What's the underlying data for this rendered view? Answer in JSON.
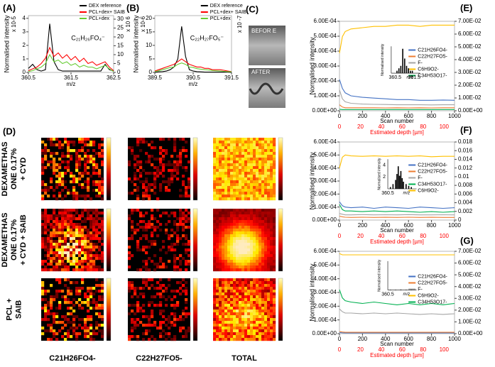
{
  "chart_data": [
    {
      "type": "line",
      "panel": "(A)",
      "ylabel": "Normalised intensity",
      "y_multiplier": "x 10-5",
      "y2_multiplier": "x 10 6",
      "xlabel": "m/z",
      "annotation": "C₂₁H₂₆FO₄⁻",
      "x": [
        360.5,
        360.6,
        360.7,
        360.8,
        360.9,
        361.0,
        361.1,
        361.2,
        361.3,
        361.4,
        361.5,
        361.6,
        361.7,
        361.8,
        361.9,
        362.0,
        362.1,
        362.2,
        362.3,
        362.4,
        362.5
      ],
      "xlim": [
        360.5,
        362.5
      ],
      "xticks": [
        360.5,
        361.5,
        362.5
      ],
      "ylim": [
        0,
        4.2
      ],
      "yticks": [
        0,
        1,
        2,
        3,
        4
      ],
      "y2lim": [
        0,
        32
      ],
      "y2ticks": [
        0,
        5,
        10,
        15,
        20,
        25,
        30
      ],
      "legend": "upper right",
      "series": [
        {
          "name": "DEX reference",
          "color": "#000000",
          "values": [
            0.3,
            0.6,
            0.2,
            0.1,
            0.2,
            3.6,
            0.8,
            0.2,
            0.1,
            0.1,
            0.1,
            0.1,
            0.1,
            0.1,
            0.1,
            0.1,
            0.1,
            0.1,
            0.6,
            0.2,
            0.1
          ]
        },
        {
          "name": "PCL+dex+ SAIB",
          "color": "#ff0000",
          "axis": "y2",
          "values": [
            1,
            2,
            3,
            5,
            8,
            14,
            9,
            11,
            8,
            10,
            7,
            9,
            6,
            8,
            5,
            6,
            4,
            5,
            6,
            3,
            1
          ]
        },
        {
          "name": "PCL+dex",
          "color": "#66cc33",
          "axis": "y2",
          "values": [
            0.5,
            1,
            2,
            3,
            5,
            10,
            6,
            7,
            5,
            6,
            4,
            5,
            3,
            4,
            3,
            3,
            2,
            3,
            4,
            2,
            0.5
          ]
        }
      ]
    },
    {
      "type": "line",
      "panel": "(B)",
      "ylabel": "Normalised intensity",
      "y_multiplier": "x 10-6",
      "y2_multiplier": "x 10 -7",
      "xlabel": "m/z",
      "annotation": "C₂₂H₂₇FO₅⁻",
      "x": [
        389.5,
        389.6,
        389.7,
        389.8,
        389.9,
        390.0,
        390.1,
        390.2,
        390.3,
        390.4,
        390.5,
        390.6,
        390.7,
        390.8,
        390.9,
        391.0,
        391.1,
        391.2,
        391.3,
        391.4,
        391.5
      ],
      "xlim": [
        389.5,
        391.5
      ],
      "xticks": [
        389.5,
        390.5,
        391.5
      ],
      "ylim": [
        0,
        21
      ],
      "yticks": [
        0,
        5,
        10,
        15,
        20
      ],
      "legend": "upper right",
      "series": [
        {
          "name": "DEX reference",
          "color": "#000000",
          "values": [
            0,
            0.2,
            0.3,
            0.5,
            1,
            2,
            5,
            17,
            6,
            1,
            0.5,
            0.3,
            0.2,
            0.1,
            0.1,
            0.1,
            0.1,
            0.1,
            0.1,
            0.1,
            0
          ]
        },
        {
          "name": "PCL+dex+ SAIB",
          "color": "#ff0000",
          "values": [
            0.5,
            1,
            1.5,
            2,
            2.5,
            3,
            4,
            5,
            4,
            3,
            2.5,
            2,
            2,
            1.5,
            1.5,
            1,
            1,
            1,
            0.8,
            0.5,
            0.3
          ]
        },
        {
          "name": "PCL+dex",
          "color": "#66cc33",
          "values": [
            0.3,
            0.6,
            1,
            1.4,
            1.8,
            2,
            3,
            3.5,
            3,
            2,
            1.8,
            1.4,
            1.2,
            1,
            0.9,
            0.7,
            0.6,
            0.5,
            0.4,
            0.3,
            0.2
          ]
        }
      ]
    },
    {
      "type": "line",
      "panel": "(E)",
      "ylabel": "Normalised intensity",
      "xlabel": "Scan number",
      "x2label": "Estimated depth [µm]",
      "x": [
        0,
        25,
        50,
        100,
        200,
        300,
        400,
        500,
        600,
        700,
        800,
        900,
        1000
      ],
      "xlim": [
        0,
        1000
      ],
      "xticks": [
        0,
        200,
        400,
        600,
        800,
        1000
      ],
      "x2lim": [
        0,
        110
      ],
      "x2ticks": [
        0,
        20,
        40,
        60,
        80,
        100
      ],
      "x2color": "#ff0000",
      "ylim": [
        0,
        0.0006
      ],
      "yticks": [
        {
          "value": 0,
          "label": "0.00E+00"
        },
        {
          "value": 0.0001,
          "label": "1.00E-04"
        },
        {
          "value": 0.0002,
          "label": "2.00E-04"
        },
        {
          "value": 0.0003,
          "label": "3.00E-04"
        },
        {
          "value": 0.0004,
          "label": "4.00E-04"
        },
        {
          "value": 0.0005,
          "label": "5.00E-04"
        },
        {
          "value": 0.0006,
          "label": "6.00E-04"
        }
      ],
      "y2lim": [
        0,
        0.07
      ],
      "y2ticks": [
        {
          "value": 0,
          "label": "0.00E+00"
        },
        {
          "value": 0.01,
          "label": "1.00E-02"
        },
        {
          "value": 0.02,
          "label": "2.00E-02"
        },
        {
          "value": 0.03,
          "label": "3.00E-02"
        },
        {
          "value": 0.04,
          "label": "4.00E-02"
        },
        {
          "value": 0.05,
          "label": "5.00E-02"
        },
        {
          "value": 0.06,
          "label": "6.00E-02"
        },
        {
          "value": 0.07,
          "label": "7.00E-02"
        }
      ],
      "legend": "center right",
      "series": [
        {
          "name": "C21H26FO4-",
          "color": "#4472c4",
          "values": [
            0.00021,
            0.00015,
            0.00012,
            0.0001,
            9e-05,
            8.5e-05,
            8e-05,
            7.5e-05,
            7.5e-05,
            7e-05,
            7e-05,
            7.2e-05,
            7e-05
          ]
        },
        {
          "name": "C22H27FO5-",
          "color": "#ed7d31",
          "values": [
            4e-05,
            2.5e-05,
            2e-05,
            2e-05,
            2e-05,
            2e-05,
            1.9e-05,
            2e-05,
            1.9e-05,
            2e-05,
            1.9e-05,
            2e-05,
            2e-05
          ]
        },
        {
          "name": "F-",
          "color": "#a5a5a5",
          "values": [
            0.00014,
            8e-05,
            6e-05,
            5e-05,
            4.5e-05,
            4.3e-05,
            4.2e-05,
            4e-05,
            4e-05,
            4e-05,
            3.9e-05,
            4e-05,
            4e-05
          ]
        },
        {
          "name": "C6H9O2-",
          "color": "#ffc000",
          "axis": "y2",
          "values": [
            0.045,
            0.058,
            0.062,
            0.064,
            0.065,
            0.066,
            0.066,
            0.067,
            0.067,
            0.066,
            0.067,
            0.067,
            0.067
          ]
        },
        {
          "name": "C34H53O17-",
          "color": "#00b050",
          "values": [
            1e-05,
            8e-06,
            8e-06,
            8e-06,
            8e-06,
            8e-06,
            8e-06,
            8e-06,
            8e-06,
            8e-06,
            8e-06,
            8e-06,
            8e-06
          ]
        }
      ],
      "inset": {
        "ylabel": "Normalised intensity",
        "xlabel": "m/z",
        "xlim": [
          360.3,
          361.8
        ],
        "xticks": [
          360.5,
          361.5
        ],
        "ylim": [
          0,
          1.1
        ],
        "x": [
          360.6,
          360.7,
          360.8,
          360.9,
          361.0,
          361.1,
          361.2,
          361.3,
          361.4
        ],
        "values": [
          0.1,
          0.2,
          0.3,
          1,
          0.6,
          0.3,
          0.2,
          0.1,
          0.1
        ]
      }
    },
    {
      "type": "line",
      "panel": "(F)",
      "ylabel": "Normalised intensity",
      "xlabel": "Scan number",
      "x2label": "Estimated depth [µm]",
      "x": [
        0,
        25,
        50,
        100,
        200,
        300,
        400,
        500,
        600,
        700,
        800,
        900,
        1000
      ],
      "xlim": [
        0,
        1000
      ],
      "xticks": [
        0,
        200,
        400,
        600,
        800,
        1000
      ],
      "x2lim": [
        0,
        110
      ],
      "x2ticks": [
        0,
        20,
        40,
        60,
        80,
        100
      ],
      "x2color": "#ff0000",
      "ylim": [
        0,
        0.0006
      ],
      "yticks": [
        {
          "value": 0,
          "label": "0.00E+00"
        },
        {
          "value": 0.0001,
          "label": "1.00E-04"
        },
        {
          "value": 0.0002,
          "label": "2.00E-04"
        },
        {
          "value": 0.0003,
          "label": "3.00E-04"
        },
        {
          "value": 0.0004,
          "label": "4.00E-04"
        },
        {
          "value": 0.0005,
          "label": "5.00E-04"
        },
        {
          "value": 0.0006,
          "label": "6.00E-04"
        }
      ],
      "y2lim": [
        0,
        0.018
      ],
      "y2ticks": [
        0,
        0.002,
        0.004,
        0.006,
        0.008,
        0.01,
        0.012,
        0.014,
        0.016,
        0.018
      ],
      "legend": "center right",
      "series": [
        {
          "name": "C21H26FO4-",
          "color": "#4472c4",
          "values": [
            0.00014,
            0.00011,
            0.0001,
            9.5e-05,
            0.0001,
            9e-05,
            0.0001,
            9.5e-05,
            9e-05,
            0.0001,
            9.5e-05,
            9e-05,
            9.5e-05
          ]
        },
        {
          "name": "C22H27FO5-",
          "color": "#ed7d31",
          "values": [
            3e-05,
            2.5e-05,
            2.2e-05,
            2e-05,
            2.2e-05,
            2e-05,
            2.1e-05,
            2e-05,
            2.2e-05,
            2e-05,
            2.1e-05,
            2e-05,
            2e-05
          ]
        },
        {
          "name": "F-",
          "color": "#a5a5a5",
          "values": [
            5e-05,
            4.5e-05,
            4e-05,
            4e-05,
            4.2e-05,
            4e-05,
            4.1e-05,
            4e-05,
            4.2e-05,
            4e-05,
            4e-05,
            4.1e-05,
            4e-05
          ]
        },
        {
          "name": "C34H53O17-",
          "color": "#00b050",
          "values": [
            0.00012,
            8e-05,
            7e-05,
            7e-05,
            6.5e-05,
            7e-05,
            6.5e-05,
            7e-05,
            6.5e-05,
            6e-05,
            6.5e-05,
            6e-05,
            6.5e-05
          ]
        },
        {
          "name": "C6H9O2-",
          "color": "#ffc000",
          "axis": "y2",
          "values": [
            0.012,
            0.0145,
            0.015,
            0.0148,
            0.0147,
            0.0148,
            0.0147,
            0.0148,
            0.0147,
            0.0148,
            0.0146,
            0.0147,
            0.0147
          ]
        }
      ],
      "inset": {
        "ylabel": "Normalised intensity",
        "xlabel": "m/z",
        "xlim": [
          360.5,
          361.6
        ],
        "xticks": [
          360.5
        ],
        "ylim": [
          0,
          5
        ],
        "yticks": [
          2,
          4
        ],
        "x": [
          360.6,
          360.7,
          360.8,
          360.85,
          360.9,
          360.95,
          361.0,
          361.05,
          361.1,
          361.2,
          361.3,
          361.4
        ],
        "values": [
          0.3,
          0.8,
          1.5,
          2.5,
          3.8,
          2.2,
          3,
          1.8,
          1.2,
          0.8,
          0.5,
          0.3
        ]
      }
    },
    {
      "type": "line",
      "panel": "(G)",
      "ylabel": "Normalised intensity",
      "xlabel": "Scan number",
      "x2label": "Estimated depth [µm]",
      "x": [
        0,
        25,
        50,
        100,
        200,
        300,
        400,
        500,
        600,
        700,
        800,
        900,
        1000
      ],
      "xlim": [
        0,
        1000
      ],
      "xticks": [
        0,
        200,
        400,
        600,
        800,
        1000
      ],
      "x2lim": [
        0,
        110
      ],
      "x2ticks": [
        0,
        20,
        40,
        60,
        80,
        100
      ],
      "x2color": "#ff0000",
      "ylim": [
        0,
        0.0006
      ],
      "yticks": [
        {
          "value": 0,
          "label": "0.00E+00"
        },
        {
          "value": 0.0001,
          "label": "1.00E-04"
        },
        {
          "value": 0.0002,
          "label": "2.00E-04"
        },
        {
          "value": 0.0003,
          "label": "3.00E-04"
        },
        {
          "value": 0.0004,
          "label": "4.00E-04"
        },
        {
          "value": 0.0005,
          "label": "5.00E-04"
        },
        {
          "value": 0.0006,
          "label": "6.00E-04"
        }
      ],
      "y2lim": [
        0,
        0.07
      ],
      "y2ticks": [
        {
          "value": 0,
          "label": "0.00E+00"
        },
        {
          "value": 0.01,
          "label": "1.00E-02"
        },
        {
          "value": 0.02,
          "label": "2.00E-02"
        },
        {
          "value": 0.03,
          "label": "3.00E-02"
        },
        {
          "value": 0.04,
          "label": "4.00E-02"
        },
        {
          "value": 0.05,
          "label": "5.00E-02"
        },
        {
          "value": 0.06,
          "label": "6.00E-02"
        },
        {
          "value": 0.07,
          "label": "7.00E-02"
        }
      ],
      "legend": "center right",
      "series": [
        {
          "name": "C21H26FO4-",
          "color": "#4472c4",
          "values": [
            8e-06,
            6e-06,
            5e-06,
            5e-06,
            5e-06,
            5e-06,
            5e-06,
            5e-06,
            5e-06,
            5e-06,
            5e-06,
            5e-06,
            5e-06
          ]
        },
        {
          "name": "C22H27FO5-",
          "color": "#ed7d31",
          "values": [
            1.5e-05,
            1.2e-05,
            1e-05,
            1e-05,
            1e-05,
            1e-05,
            1e-05,
            1e-05,
            1e-05,
            1e-05,
            1e-05,
            1e-05,
            1e-05
          ]
        },
        {
          "name": "F-",
          "color": "#a5a5a5",
          "values": [
            0.00018,
            0.00016,
            0.00015,
            0.00015,
            0.000145,
            0.00015,
            0.000145,
            0.00015,
            0.000145,
            0.00014,
            0.000145,
            0.00014,
            0.000145
          ]
        },
        {
          "name": "C6H9O2-",
          "color": "#ffc000",
          "axis": "y2",
          "values": [
            0.068,
            0.067,
            0.067,
            0.067,
            0.067,
            0.067,
            0.067,
            0.067,
            0.067,
            0.067,
            0.067,
            0.067,
            0.067
          ]
        },
        {
          "name": "C34H53O17-",
          "color": "#00b050",
          "values": [
            0.00032,
            0.00026,
            0.00024,
            0.00023,
            0.00022,
            0.00023,
            0.00022,
            0.00021,
            0.00022,
            0.00021,
            0.00022,
            0.00021,
            0.00022
          ]
        }
      ],
      "inset": {
        "ylabel": "Normalised intensity",
        "xlabel": "m/z",
        "xlim": [
          360.5,
          361.6
        ],
        "xticks": [
          360.5
        ],
        "ylim": [
          0,
          5
        ],
        "x": [
          360.6,
          360.8,
          361.0,
          361.2,
          361.4
        ],
        "values": [
          0.05,
          0.05,
          0.08,
          0.05,
          0.05
        ]
      }
    }
  ],
  "panel_c": {
    "letter": "(C)",
    "before": "BEFOR E",
    "after": "AFTER"
  },
  "panel_d": {
    "letter": "(D)",
    "row_labels": [
      [
        "DEXAMETHAS",
        "ONE 0.17%",
        "+ CYD"
      ],
      [
        "DEXAMETHAS",
        "ONE 0.17%",
        "+ CYD + SAIB"
      ],
      [
        "PCL +",
        "SAIB"
      ]
    ],
    "column_labels": [
      "C21H26FO4-",
      "C22H27FO5-",
      "TOTAL"
    ]
  }
}
